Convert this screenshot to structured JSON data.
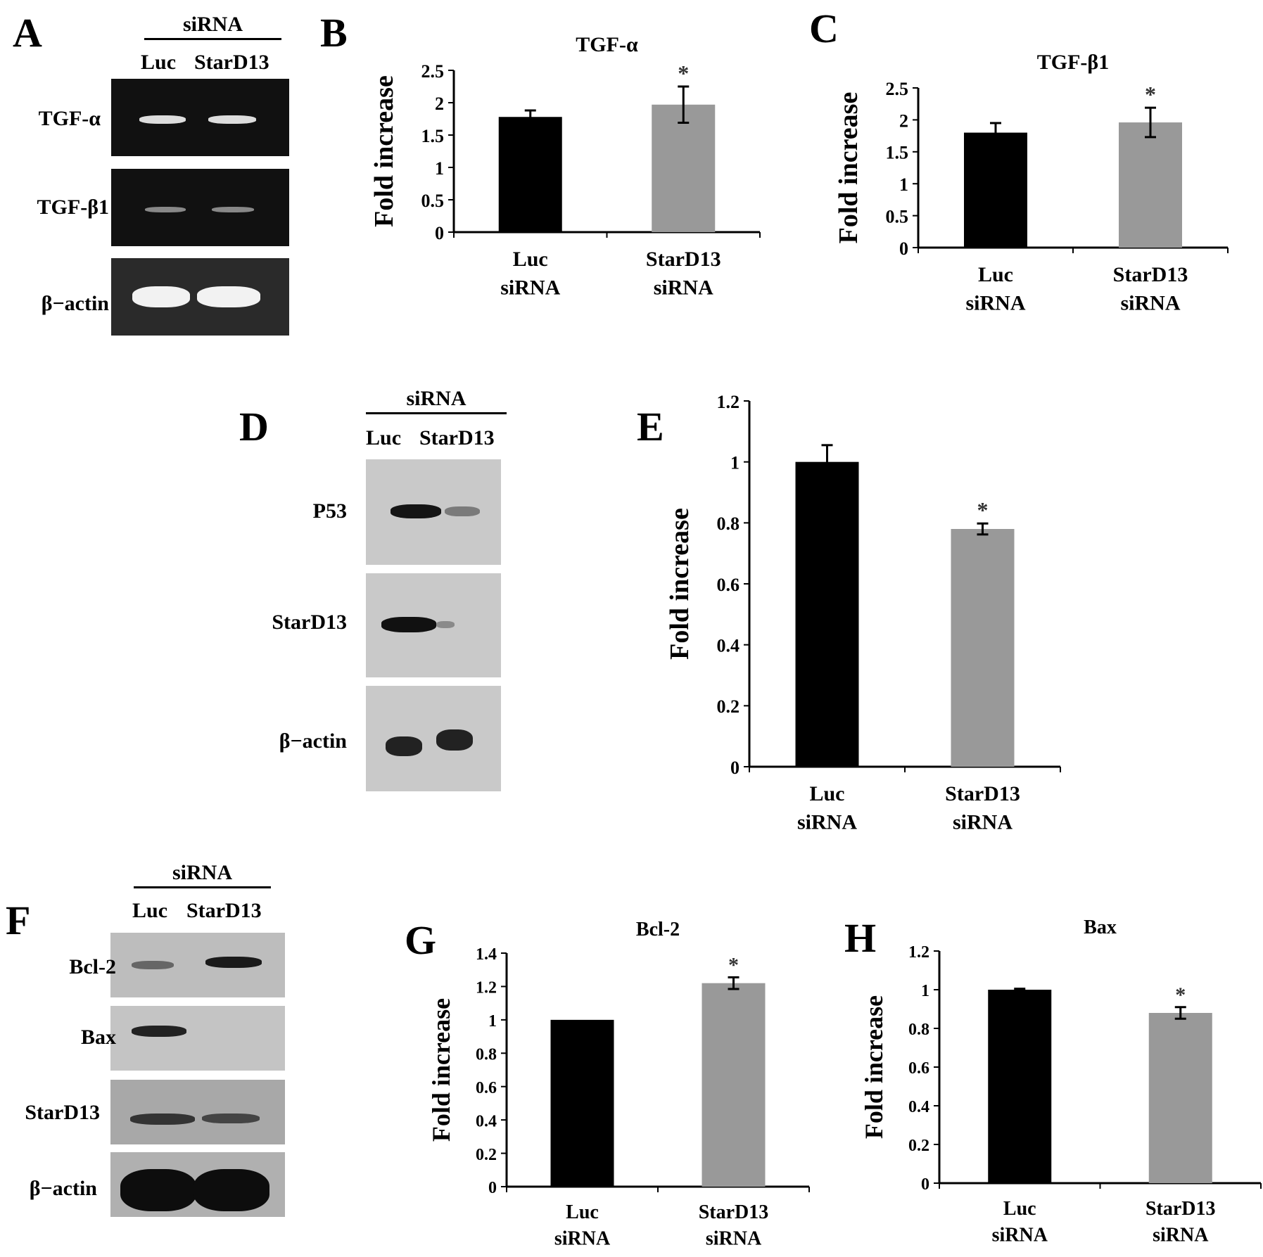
{
  "panel_letters": {
    "A": "A",
    "B": "B",
    "C": "C",
    "D": "D",
    "E": "E",
    "F": "F",
    "G": "G",
    "H": "H"
  },
  "gels": {
    "A": {
      "header": "siRNA",
      "lanes": [
        "Luc",
        "StarD13"
      ],
      "rows": [
        "TGF-α",
        "TGF-β1",
        "β−actin"
      ]
    },
    "D": {
      "header": "siRNA",
      "lanes": [
        "Luc",
        "StarD13"
      ],
      "rows": [
        "P53",
        "StarD13",
        "β−actin"
      ]
    },
    "F": {
      "header": "siRNA",
      "lanes": [
        "Luc",
        "StarD13"
      ],
      "rows": [
        "Bcl-2",
        "Bax",
        "StarD13",
        "β−actin"
      ]
    }
  },
  "chart_data": [
    {
      "id": "B",
      "type": "bar",
      "title": "TGF-α",
      "ylabel": "Fold increase",
      "categories": [
        [
          "Luc",
          "siRNA"
        ],
        [
          "StarD13",
          "siRNA"
        ]
      ],
      "values": [
        1.78,
        1.97
      ],
      "errors": [
        0.1,
        0.28
      ],
      "ylim": [
        0,
        2.5
      ],
      "yticks": [
        "0",
        "0.5",
        "1",
        "1.5",
        "2",
        "2.5"
      ],
      "significance": [
        "",
        "*"
      ],
      "colors": [
        "#000000",
        "#999999"
      ]
    },
    {
      "id": "C",
      "type": "bar",
      "title": "TGF-β1",
      "ylabel": "Fold increase",
      "categories": [
        [
          "Luc",
          "siRNA"
        ],
        [
          "StarD13",
          "siRNA"
        ]
      ],
      "values": [
        1.8,
        1.96
      ],
      "errors": [
        0.15,
        0.23
      ],
      "ylim": [
        0,
        2.5
      ],
      "yticks": [
        "0",
        "0.5",
        "1",
        "1.5",
        "2",
        "2.5"
      ],
      "significance": [
        "",
        "*"
      ],
      "colors": [
        "#000000",
        "#999999"
      ]
    },
    {
      "id": "E",
      "type": "bar",
      "title": "",
      "ylabel": "Fold increase",
      "categories": [
        [
          "Luc",
          "siRNA"
        ],
        [
          "StarD13",
          "siRNA"
        ]
      ],
      "values": [
        1.0,
        0.78
      ],
      "errors": [
        0.055,
        0.018
      ],
      "ylim": [
        0,
        1.2
      ],
      "yticks": [
        "0",
        "0.2",
        "0.4",
        "0.6",
        "0.8",
        "1",
        "1.2"
      ],
      "significance": [
        "",
        "*"
      ],
      "colors": [
        "#000000",
        "#999999"
      ]
    },
    {
      "id": "G",
      "type": "bar",
      "title": "Bcl-2",
      "ylabel": "Fold increase",
      "categories": [
        [
          "Luc",
          "siRNA"
        ],
        [
          "StarD13",
          "siRNA"
        ]
      ],
      "values": [
        1.0,
        1.22
      ],
      "errors": [
        0.0,
        0.035
      ],
      "ylim": [
        0,
        1.4
      ],
      "yticks": [
        "0",
        "0.2",
        "0.4",
        "0.6",
        "0.8",
        "1",
        "1.2",
        "1.4"
      ],
      "significance": [
        "",
        "*"
      ],
      "colors": [
        "#000000",
        "#999999"
      ]
    },
    {
      "id": "H",
      "type": "bar",
      "title": "Bax",
      "ylabel": "Fold increase",
      "categories": [
        [
          "Luc",
          "siRNA"
        ],
        [
          "StarD13",
          "siRNA"
        ]
      ],
      "values": [
        1.0,
        0.88
      ],
      "errors": [
        0.005,
        0.03
      ],
      "ylim": [
        0,
        1.2
      ],
      "yticks": [
        "0",
        "0.2",
        "0.4",
        "0.6",
        "0.8",
        "1",
        "1.2"
      ],
      "significance": [
        "",
        "*"
      ],
      "colors": [
        "#000000",
        "#999999"
      ]
    }
  ]
}
